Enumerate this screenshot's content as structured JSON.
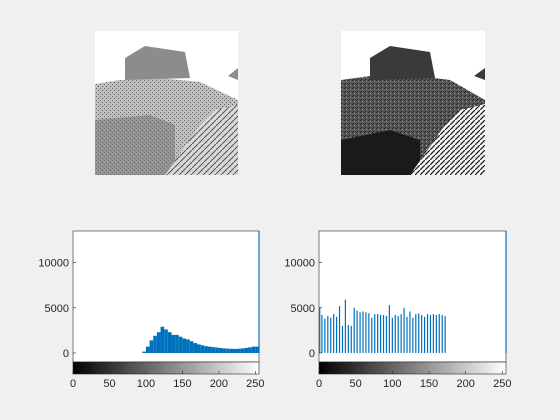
{
  "figure": {
    "background": "#f0f0f0",
    "bar_color": "#0072bd"
  },
  "images": [
    {
      "name": "original-image",
      "description_icon": "landscape-photo"
    },
    {
      "name": "equalized-image",
      "description_icon": "landscape-photo"
    }
  ],
  "chart_data": [
    {
      "type": "bar",
      "title": "",
      "xlabel": "",
      "ylabel": "",
      "xlim": [
        0,
        255
      ],
      "ylim": [
        -1000,
        13500
      ],
      "xticks": [
        "0",
        "50",
        "100",
        "150",
        "200",
        "250"
      ],
      "yticks": [
        "0",
        "5000",
        "10000"
      ],
      "grid": false,
      "colorbar": "grayscale",
      "x": [
        95,
        100,
        105,
        110,
        115,
        120,
        125,
        130,
        135,
        140,
        145,
        150,
        155,
        160,
        165,
        170,
        175,
        180,
        185,
        190,
        195,
        200,
        205,
        210,
        215,
        220,
        225,
        230,
        235,
        240,
        245,
        250,
        255
      ],
      "values": [
        150,
        700,
        1400,
        1900,
        2300,
        2900,
        2600,
        2300,
        2000,
        2000,
        1800,
        1600,
        1500,
        1300,
        1100,
        950,
        850,
        750,
        700,
        650,
        600,
        550,
        500,
        480,
        460,
        450,
        470,
        500,
        560,
        620,
        700,
        700,
        13500
      ]
    },
    {
      "type": "bar",
      "title": "",
      "xlabel": "",
      "ylabel": "",
      "xlim": [
        0,
        255
      ],
      "ylim": [
        -1000,
        13500
      ],
      "xticks": [
        "0",
        "50",
        "100",
        "150",
        "200",
        "250"
      ],
      "yticks": [
        "0",
        "5000",
        "10000"
      ],
      "grid": false,
      "colorbar": "grayscale",
      "x": [
        1,
        4,
        8,
        12,
        16,
        20,
        24,
        28,
        32,
        36,
        40,
        44,
        48,
        52,
        56,
        60,
        64,
        68,
        72,
        76,
        80,
        84,
        88,
        92,
        96,
        100,
        104,
        108,
        112,
        116,
        120,
        124,
        128,
        132,
        136,
        140,
        144,
        148,
        152,
        156,
        160,
        164,
        168,
        172,
        255
      ],
      "values": [
        5000,
        4200,
        3800,
        4100,
        3900,
        4300,
        4000,
        5200,
        3000,
        5900,
        3100,
        3000,
        5000,
        4700,
        4500,
        4600,
        4500,
        4400,
        3900,
        4300,
        4300,
        4200,
        4200,
        4100,
        5300,
        3900,
        4200,
        4100,
        4300,
        5000,
        4000,
        4600,
        3900,
        4300,
        4400,
        4200,
        4000,
        4300,
        4200,
        4300,
        4200,
        4300,
        4200,
        4100,
        13500
      ]
    }
  ]
}
